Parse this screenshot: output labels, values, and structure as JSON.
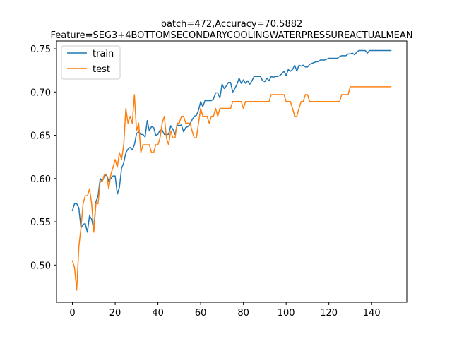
{
  "chart_data": {
    "type": "line",
    "title": "batch=472,Accuracy=70.5882",
    "subtitle": "Feature=SEG3+4BOTTOMSECONDARYCOOLINGWATERPRESSUREACTUALMEAN",
    "xlabel": "",
    "ylabel": "",
    "xlim": [
      -7.45,
      156.45
    ],
    "ylim": [
      0.457,
      0.759
    ],
    "xticks": [
      0,
      20,
      40,
      60,
      80,
      100,
      120,
      140
    ],
    "yticks": [
      0.5,
      0.55,
      0.6,
      0.65,
      0.7,
      0.75
    ],
    "grid": false,
    "legend_position": "top-left",
    "series": [
      {
        "name": "train",
        "color": "#1f77b4",
        "x": [
          0,
          1,
          2,
          3,
          4,
          5,
          6,
          7,
          8,
          9,
          10,
          11,
          12,
          13,
          14,
          15,
          16,
          17,
          18,
          19,
          20,
          21,
          22,
          23,
          24,
          25,
          26,
          27,
          28,
          29,
          30,
          31,
          32,
          33,
          34,
          35,
          36,
          37,
          38,
          39,
          40,
          41,
          42,
          43,
          44,
          45,
          46,
          47,
          48,
          49,
          50,
          51,
          52,
          53,
          54,
          55,
          56,
          57,
          58,
          59,
          60,
          61,
          62,
          63,
          64,
          65,
          66,
          67,
          68,
          69,
          70,
          71,
          72,
          73,
          74,
          75,
          76,
          77,
          78,
          79,
          80,
          81,
          82,
          83,
          84,
          85,
          86,
          87,
          88,
          89,
          90,
          91,
          92,
          93,
          94,
          95,
          96,
          97,
          98,
          99,
          100,
          101,
          102,
          103,
          104,
          105,
          106,
          107,
          108,
          109,
          110,
          111,
          112,
          113,
          114,
          115,
          116,
          117,
          118,
          119,
          120,
          121,
          122,
          123,
          124,
          125,
          126,
          127,
          128,
          129,
          130,
          131,
          132,
          133,
          134,
          135,
          136,
          137,
          138,
          139,
          140,
          141,
          142,
          143,
          144,
          145,
          146,
          147,
          148,
          149
        ],
        "values": [
          0.563,
          0.571,
          0.571,
          0.566,
          0.543,
          0.547,
          0.548,
          0.538,
          0.557,
          0.553,
          0.541,
          0.573,
          0.58,
          0.6,
          0.597,
          0.603,
          0.604,
          0.597,
          0.6,
          0.603,
          0.603,
          0.582,
          0.59,
          0.612,
          0.618,
          0.63,
          0.634,
          0.636,
          0.633,
          0.639,
          0.652,
          0.654,
          0.651,
          0.651,
          0.648,
          0.667,
          0.655,
          0.66,
          0.659,
          0.65,
          0.651,
          0.656,
          0.656,
          0.651,
          0.651,
          0.651,
          0.661,
          0.657,
          0.651,
          0.662,
          0.661,
          0.662,
          0.654,
          0.659,
          0.66,
          0.663,
          0.668,
          0.672,
          0.673,
          0.679,
          0.689,
          0.683,
          0.69,
          0.69,
          0.69,
          0.69,
          0.692,
          0.699,
          0.699,
          0.693,
          0.709,
          0.704,
          0.707,
          0.711,
          0.711,
          0.7,
          0.704,
          0.709,
          0.716,
          0.71,
          0.714,
          0.71,
          0.713,
          0.709,
          0.713,
          0.718,
          0.718,
          0.718,
          0.718,
          0.713,
          0.712,
          0.716,
          0.713,
          0.718,
          0.717,
          0.718,
          0.718,
          0.719,
          0.721,
          0.724,
          0.719,
          0.726,
          0.724,
          0.726,
          0.731,
          0.724,
          0.731,
          0.73,
          0.731,
          0.729,
          0.729,
          0.732,
          0.733,
          0.734,
          0.735,
          0.735,
          0.737,
          0.737,
          0.737,
          0.738,
          0.739,
          0.739,
          0.739,
          0.739,
          0.739,
          0.741,
          0.742,
          0.742,
          0.742,
          0.744,
          0.744,
          0.745,
          0.743,
          0.746,
          0.748,
          0.748,
          0.748,
          0.748,
          0.745,
          0.748,
          0.748,
          0.748,
          0.748,
          0.748,
          0.748,
          0.748,
          0.748,
          0.748,
          0.748,
          0.748
        ]
      },
      {
        "name": "test",
        "color": "#ff7f0e",
        "x": [
          0,
          1,
          2,
          3,
          4,
          5,
          6,
          7,
          8,
          9,
          10,
          11,
          12,
          13,
          14,
          15,
          16,
          17,
          18,
          19,
          20,
          21,
          22,
          23,
          24,
          25,
          26,
          27,
          28,
          29,
          30,
          31,
          32,
          33,
          34,
          35,
          36,
          37,
          38,
          39,
          40,
          41,
          42,
          43,
          44,
          45,
          46,
          47,
          48,
          49,
          50,
          51,
          52,
          53,
          54,
          55,
          56,
          57,
          58,
          59,
          60,
          61,
          62,
          63,
          64,
          65,
          66,
          67,
          68,
          69,
          70,
          71,
          72,
          73,
          74,
          75,
          76,
          77,
          78,
          79,
          80,
          81,
          82,
          83,
          84,
          85,
          86,
          87,
          88,
          89,
          90,
          91,
          92,
          93,
          94,
          95,
          96,
          97,
          98,
          99,
          100,
          101,
          102,
          103,
          104,
          105,
          106,
          107,
          108,
          109,
          110,
          111,
          112,
          113,
          114,
          115,
          116,
          117,
          118,
          119,
          120,
          121,
          122,
          123,
          124,
          125,
          126,
          127,
          128,
          129,
          130,
          131,
          132,
          133,
          134,
          135,
          136,
          137,
          138,
          139,
          140,
          141,
          142,
          143,
          144,
          145,
          146,
          147,
          148,
          149
        ],
        "values": [
          0.505,
          0.497,
          0.471,
          0.521,
          0.543,
          0.571,
          0.58,
          0.58,
          0.588,
          0.571,
          0.538,
          0.571,
          0.571,
          0.597,
          0.597,
          0.605,
          0.605,
          0.588,
          0.605,
          0.613,
          0.622,
          0.613,
          0.63,
          0.622,
          0.639,
          0.681,
          0.664,
          0.672,
          0.664,
          0.697,
          0.655,
          0.664,
          0.63,
          0.639,
          0.639,
          0.639,
          0.639,
          0.63,
          0.63,
          0.639,
          0.639,
          0.647,
          0.664,
          0.672,
          0.647,
          0.639,
          0.655,
          0.647,
          0.647,
          0.664,
          0.664,
          0.672,
          0.672,
          0.664,
          0.664,
          0.664,
          0.655,
          0.647,
          0.647,
          0.664,
          0.681,
          0.672,
          0.672,
          0.672,
          0.664,
          0.672,
          0.672,
          0.681,
          0.672,
          0.681,
          0.681,
          0.681,
          0.681,
          0.681,
          0.681,
          0.689,
          0.689,
          0.689,
          0.689,
          0.689,
          0.681,
          0.689,
          0.689,
          0.689,
          0.689,
          0.689,
          0.689,
          0.689,
          0.689,
          0.689,
          0.689,
          0.689,
          0.689,
          0.697,
          0.697,
          0.697,
          0.697,
          0.697,
          0.697,
          0.697,
          0.689,
          0.689,
          0.689,
          0.681,
          0.672,
          0.672,
          0.681,
          0.689,
          0.689,
          0.697,
          0.697,
          0.689,
          0.689,
          0.689,
          0.689,
          0.689,
          0.689,
          0.689,
          0.689,
          0.689,
          0.689,
          0.689,
          0.689,
          0.689,
          0.689,
          0.689,
          0.697,
          0.697,
          0.697,
          0.697,
          0.706,
          0.706,
          0.706,
          0.706,
          0.706,
          0.706,
          0.706,
          0.706,
          0.706,
          0.706,
          0.706,
          0.706,
          0.706,
          0.706,
          0.706,
          0.706,
          0.706,
          0.706,
          0.706,
          0.706
        ]
      }
    ]
  }
}
